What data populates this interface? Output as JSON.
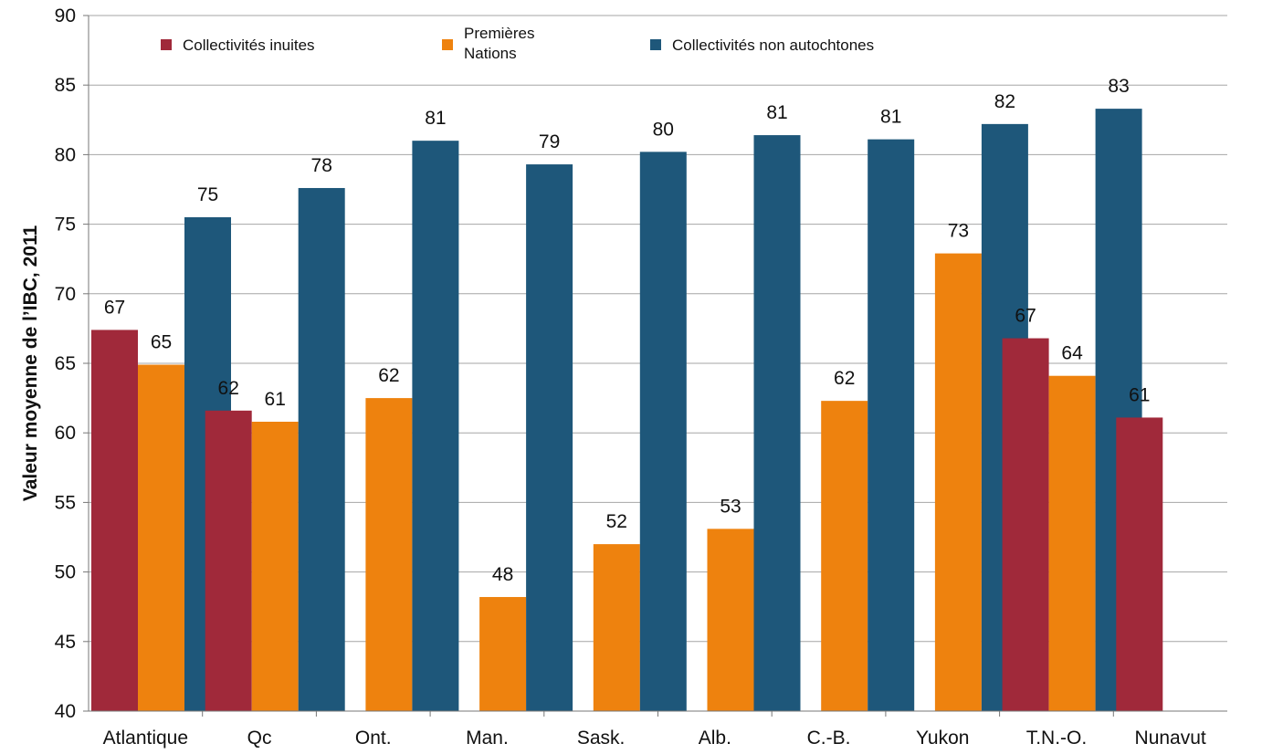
{
  "chart_data": {
    "type": "bar",
    "title": "",
    "xlabel": "",
    "ylabel": "Valeur moyenne de l’IBC, 2011",
    "ylim": [
      40,
      90
    ],
    "yticks": [
      40,
      45,
      50,
      55,
      60,
      65,
      70,
      75,
      80,
      85,
      90
    ],
    "grid": true,
    "legend_position": "top",
    "categories": [
      "Atlantique",
      "Qc",
      "Ont.",
      "Man.",
      "Sask.",
      "Alb.",
      "C.-B.",
      "Yukon",
      "T.N.-O.",
      "Nunavut"
    ],
    "series": [
      {
        "name": "Collectivités inuites",
        "color": "#A0293A",
        "values": [
          67.4,
          61.6,
          null,
          null,
          null,
          null,
          null,
          null,
          66.8,
          61.1
        ],
        "labels": [
          "67",
          "62",
          null,
          null,
          null,
          null,
          null,
          null,
          "67",
          "61"
        ]
      },
      {
        "name": "Premières Nations",
        "legend_lines": [
          "Premières",
          "Nations"
        ],
        "color": "#EE820E",
        "values": [
          64.9,
          60.8,
          62.5,
          48.2,
          52.0,
          53.1,
          62.3,
          72.9,
          64.1,
          null
        ],
        "labels": [
          "65",
          "61",
          "62",
          "48",
          "52",
          "53",
          "62",
          "73",
          "64",
          null
        ]
      },
      {
        "name": "Collectivités non autochtones",
        "color": "#1E577A",
        "values": [
          75.5,
          77.6,
          81.0,
          79.3,
          80.2,
          81.4,
          81.1,
          82.2,
          83.3,
          null
        ],
        "labels": [
          "75",
          "78",
          "81",
          "79",
          "80",
          "81",
          "81",
          "82",
          "83",
          null
        ]
      }
    ]
  }
}
